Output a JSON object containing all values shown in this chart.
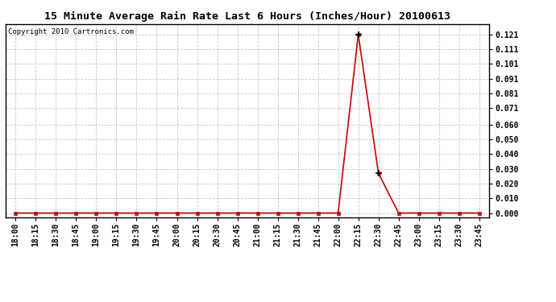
{
  "title": "15 Minute Average Rain Rate Last 6 Hours (Inches/Hour) 20100613",
  "copyright": "Copyright 2010 Cartronics.com",
  "background_color": "#ffffff",
  "plot_bg_color": "#ffffff",
  "grid_color": "#c8c8c8",
  "line_color": "#cc0000",
  "marker_color": "#000000",
  "x_labels": [
    "18:00",
    "18:15",
    "18:30",
    "18:45",
    "19:00",
    "19:15",
    "19:30",
    "19:45",
    "20:00",
    "20:15",
    "20:30",
    "20:45",
    "21:00",
    "21:15",
    "21:30",
    "21:45",
    "22:00",
    "22:15",
    "22:30",
    "22:45",
    "23:00",
    "23:15",
    "23:30",
    "23:45"
  ],
  "y_values": [
    0.0,
    0.0,
    0.0,
    0.0,
    0.0,
    0.0,
    0.0,
    0.0,
    0.0,
    0.0,
    0.0,
    0.0,
    0.0,
    0.0,
    0.0,
    0.0,
    0.0,
    0.121,
    0.027,
    0.0,
    0.0,
    0.0,
    0.0,
    0.0
  ],
  "peak_indices": [
    17,
    18
  ],
  "ytick_values": [
    0.0,
    0.01,
    0.02,
    0.03,
    0.04,
    0.05,
    0.06,
    0.071,
    0.081,
    0.091,
    0.101,
    0.111,
    0.121
  ],
  "ytick_labels": [
    "0.000",
    "0.010",
    "0.020",
    "0.030",
    "0.040",
    "0.050",
    "0.060",
    "0.071",
    "0.081",
    "0.091",
    "0.101",
    "0.111",
    "0.121"
  ],
  "ylim": [
    -0.003,
    0.128
  ],
  "title_fontsize": 9.5,
  "copyright_fontsize": 6.5,
  "tick_fontsize": 7,
  "line_width": 1.2,
  "marker_size": 3.0
}
